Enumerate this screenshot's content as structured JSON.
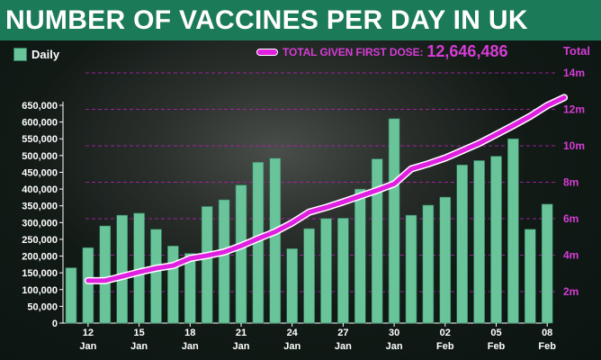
{
  "title": "NUMBER OF VACCINES PER DAY IN UK",
  "legend": {
    "daily_label": "Daily",
    "total_label": "TOTAL GIVEN FIRST DOSE:",
    "total_value": "12,646,486",
    "total_axis_title": "Total"
  },
  "colors": {
    "title_bar": "#1b7a58",
    "bar": "#6ac49a",
    "bar_outline": "#2e7d5e",
    "total_line": "#e020e0",
    "total_text": "#d63cd6"
  },
  "chart_data": {
    "type": "bar",
    "title": "NUMBER OF VACCINES PER DAY IN UK",
    "xlabel": "",
    "ylabel": "Daily",
    "y2label": "Total",
    "ylim": [
      0,
      650000
    ],
    "y2lim": [
      2000000,
      14000000
    ],
    "yticks": [
      "650,000",
      "600,000",
      "550,000",
      "500,000",
      "450,000",
      "400,000",
      "350,000",
      "300,000",
      "250,000",
      "200,000",
      "150,000",
      "100,000",
      "50,000",
      "0"
    ],
    "y2ticks": [
      "14m",
      "12m",
      "10m",
      "8m",
      "6m",
      "4m",
      "2m"
    ],
    "xticks": [
      {
        "index": 1,
        "day": "12",
        "month": "Jan"
      },
      {
        "index": 4,
        "day": "15",
        "month": "Jan"
      },
      {
        "index": 7,
        "day": "18",
        "month": "Jan"
      },
      {
        "index": 10,
        "day": "21",
        "month": "Jan"
      },
      {
        "index": 13,
        "day": "24",
        "month": "Jan"
      },
      {
        "index": 16,
        "day": "27",
        "month": "Jan"
      },
      {
        "index": 19,
        "day": "30",
        "month": "Jan"
      },
      {
        "index": 22,
        "day": "02",
        "month": "Feb"
      },
      {
        "index": 25,
        "day": "05",
        "month": "Feb"
      },
      {
        "index": 28,
        "day": "08",
        "month": "Feb"
      }
    ],
    "series": [
      {
        "name": "Daily",
        "type": "bar",
        "values": [
          165000,
          225000,
          290000,
          322000,
          328000,
          280000,
          230000,
          208000,
          348000,
          368000,
          412000,
          480000,
          492000,
          222000,
          282000,
          312000,
          313000,
          400000,
          490000,
          610000,
          322000,
          352000,
          376000,
          472000,
          485000,
          498000,
          550000,
          280000,
          355000
        ]
      },
      {
        "name": "TOTAL GIVEN FIRST DOSE",
        "type": "line",
        "axis": "right",
        "x_start": 1,
        "values": [
          2600000,
          2600000,
          2830000,
          3070000,
          3280000,
          3430000,
          3820000,
          3980000,
          4170000,
          4510000,
          4910000,
          5280000,
          5770000,
          6360000,
          6620000,
          6920000,
          7240000,
          7560000,
          7910000,
          8730000,
          9010000,
          9330000,
          9730000,
          10140000,
          10620000,
          11110000,
          11620000,
          12210000,
          12646486
        ]
      }
    ]
  }
}
